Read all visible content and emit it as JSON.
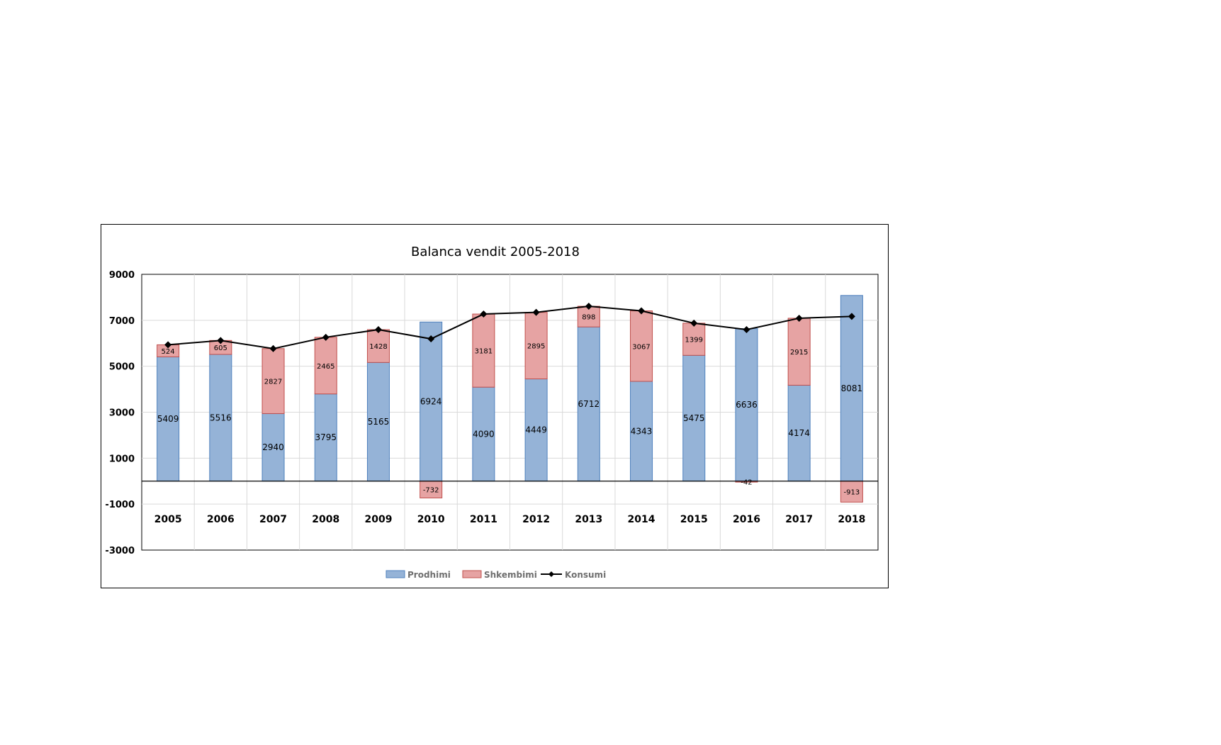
{
  "chart_data": {
    "type": "bar",
    "title": "Balanca vendit 2005-2018",
    "categories": [
      "2005",
      "2006",
      "2007",
      "2008",
      "2009",
      "2010",
      "2011",
      "2012",
      "2013",
      "2014",
      "2015",
      "2016",
      "2017",
      "2018"
    ],
    "y_ticks": [
      "9000",
      "7000",
      "5000",
      "3000",
      "1000",
      "-1000",
      "-3000"
    ],
    "ylim": [
      -3000,
      9000
    ],
    "grid": true,
    "legend_position": "bottom",
    "series": [
      {
        "name": "Prodhimi",
        "kind": "bar-stacked",
        "color": "#95b3d7",
        "border": "#4f81bd",
        "values": [
          5409,
          5516,
          2940,
          3795,
          5165,
          6924,
          4090,
          4449,
          6712,
          4343,
          5475,
          6636,
          4174,
          8081
        ],
        "labels": [
          "5409",
          "5516",
          "2940",
          "3795",
          "5165",
          "6924",
          "4090",
          "4449",
          "6712",
          "4343",
          "5475",
          "6636",
          "4174",
          "8081"
        ]
      },
      {
        "name": "Shkembimi",
        "kind": "bar-stacked",
        "color": "#e6a3a3",
        "border": "#c0504d",
        "values": [
          524,
          605,
          2827,
          2465,
          1428,
          -732,
          3181,
          2895,
          898,
          3067,
          1399,
          -42,
          2915,
          -913
        ],
        "labels": [
          "524",
          "605",
          "2827",
          "2465",
          "1428",
          "-732",
          "3181",
          "2895",
          "898",
          "3067",
          "1399",
          "-42",
          "2915",
          "-913"
        ]
      },
      {
        "name": "Konsumi",
        "kind": "line",
        "color": "#000000",
        "values": [
          5933,
          6121,
          5767,
          6260,
          6593,
          6192,
          7271,
          7344,
          7610,
          7410,
          6874,
          6594,
          7089,
          7168
        ]
      }
    ]
  }
}
